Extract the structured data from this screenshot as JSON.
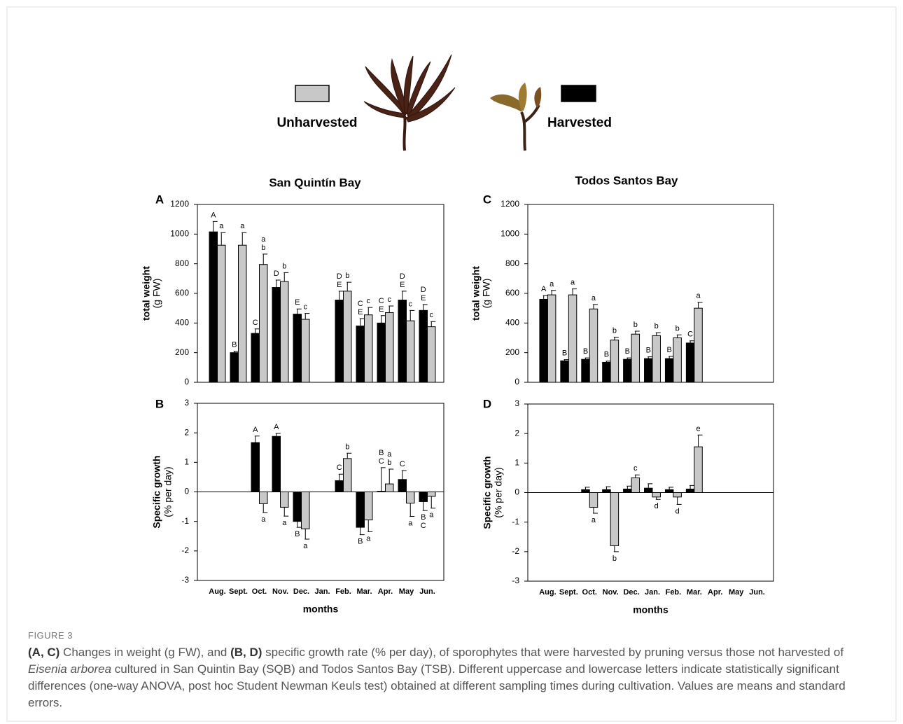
{
  "legend": [
    {
      "name": "Unharvested",
      "color": "#c8c8c8"
    },
    {
      "name": "Harvested",
      "color": "#000000"
    }
  ],
  "chart_data": [
    {
      "type": "bar",
      "panel": "A",
      "title": "San Quintín Bay",
      "ylabel": [
        "total weight",
        "(g FW)"
      ],
      "categories": [
        "Aug.",
        "Sept.",
        "Oct.",
        "Nov.",
        "Dec.",
        "Jan.",
        "Feb.",
        "Mar.",
        "Apr.",
        "May",
        "Jun."
      ],
      "show_x_labels": false,
      "ylim": [
        0,
        1200
      ],
      "yticks": [
        0,
        200,
        400,
        600,
        800,
        1000,
        1200
      ],
      "series": [
        {
          "color": "#000000",
          "values": [
            1015,
            200,
            330,
            640,
            460,
            null,
            555,
            380,
            400,
            555,
            485
          ],
          "errors": [
            70,
            10,
            30,
            50,
            35,
            null,
            60,
            50,
            50,
            60,
            40
          ],
          "letters": [
            "A",
            "B",
            "C",
            "D",
            "E",
            null,
            "DE",
            "CE",
            "CE",
            "DE",
            "DE"
          ]
        },
        {
          "color": "#c8c8c8",
          "values": [
            925,
            925,
            795,
            680,
            425,
            null,
            615,
            455,
            470,
            415,
            375
          ],
          "errors": [
            85,
            85,
            70,
            60,
            40,
            null,
            60,
            50,
            45,
            70,
            35
          ],
          "letters": [
            "a",
            "a",
            "ab",
            "b",
            "c",
            null,
            "b",
            "c",
            "c",
            "c",
            "c"
          ]
        }
      ]
    },
    {
      "type": "bar",
      "panel": "B",
      "ylabel": [
        "Specific growth",
        "(% per day)"
      ],
      "xlabel": "months",
      "categories": [
        "Aug.",
        "Sept.",
        "Oct.",
        "Nov.",
        "Dec.",
        "Jan.",
        "Feb.",
        "Mar.",
        "Apr.",
        "May",
        "Jun."
      ],
      "show_x_labels": true,
      "ylim": [
        -3,
        3
      ],
      "yticks": [
        -3,
        -2,
        -1,
        0,
        1,
        2,
        3
      ],
      "series": [
        {
          "color": "#000000",
          "values": [
            null,
            null,
            1.67,
            1.88,
            -1.0,
            null,
            0.38,
            -1.2,
            0.02,
            0.42,
            -0.33
          ],
          "errors": [
            null,
            null,
            0.22,
            0.1,
            0.2,
            null,
            0.22,
            0.25,
            0.8,
            0.3,
            0.3
          ],
          "letters": [
            null,
            null,
            "A",
            "A",
            "B",
            null,
            "C",
            "B",
            "BC",
            "C",
            "BC"
          ]
        },
        {
          "color": "#c8c8c8",
          "values": [
            null,
            null,
            -0.4,
            -0.52,
            -1.25,
            null,
            1.13,
            -0.95,
            0.27,
            -0.38,
            -0.15
          ],
          "errors": [
            null,
            null,
            0.3,
            0.3,
            0.35,
            null,
            0.18,
            0.4,
            0.5,
            0.45,
            0.4
          ],
          "letters": [
            null,
            null,
            "a",
            "a",
            "a",
            null,
            "b",
            "a",
            "ab",
            "a",
            "a"
          ]
        }
      ]
    },
    {
      "type": "bar",
      "panel": "C",
      "title": "Todos Santos Bay",
      "ylabel": [
        "total weight",
        "(g FW)"
      ],
      "categories": [
        "Aug.",
        "Sept.",
        "Oct.",
        "Nov.",
        "Dec.",
        "Jan.",
        "Feb.",
        "Mar.",
        "Apr.",
        "May",
        "Jun."
      ],
      "show_x_labels": false,
      "ylim": [
        0,
        1200
      ],
      "yticks": [
        0,
        200,
        400,
        600,
        800,
        1000,
        1200
      ],
      "series": [
        {
          "color": "#000000",
          "values": [
            560,
            145,
            155,
            135,
            155,
            160,
            160,
            265,
            null,
            null,
            null
          ],
          "errors": [
            25,
            8,
            10,
            8,
            10,
            12,
            15,
            15,
            null,
            null,
            null
          ],
          "letters": [
            "A",
            "B",
            "B",
            "B",
            "B",
            "B",
            "B",
            "C",
            null,
            null,
            null
          ]
        },
        {
          "color": "#c8c8c8",
          "values": [
            590,
            590,
            495,
            285,
            325,
            315,
            300,
            500,
            null,
            null,
            null
          ],
          "errors": [
            30,
            40,
            30,
            20,
            20,
            20,
            20,
            40,
            null,
            null,
            null
          ],
          "letters": [
            "a",
            "a",
            "a",
            "b",
            "b",
            "b",
            "b",
            "a",
            null,
            null,
            null
          ]
        }
      ]
    },
    {
      "type": "bar",
      "panel": "D",
      "ylabel": [
        "Specific growth",
        "(% per day)"
      ],
      "xlabel": "months",
      "categories": [
        "Aug.",
        "Sept.",
        "Oct.",
        "Nov.",
        "Dec.",
        "Jan.",
        "Feb.",
        "Mar.",
        "Apr.",
        "May",
        "Jun."
      ],
      "show_x_labels": true,
      "ylim": [
        -3,
        3
      ],
      "yticks": [
        -3,
        -2,
        -1,
        0,
        1,
        2,
        3
      ],
      "series": [
        {
          "color": "#000000",
          "values": [
            null,
            null,
            0.1,
            0.1,
            0.12,
            0.15,
            0.1,
            0.12,
            null,
            null,
            null
          ],
          "errors": [
            null,
            null,
            0.08,
            0.1,
            0.1,
            0.15,
            0.08,
            0.12,
            null,
            null,
            null
          ],
          "letters": [
            null,
            null,
            null,
            null,
            null,
            null,
            null,
            null,
            null,
            null,
            null
          ]
        },
        {
          "color": "#c8c8c8",
          "values": [
            null,
            null,
            -0.5,
            -1.8,
            0.5,
            -0.15,
            -0.15,
            1.55,
            null,
            null,
            null
          ],
          "errors": [
            null,
            null,
            0.2,
            0.2,
            0.1,
            0.08,
            0.25,
            0.4,
            null,
            null,
            null
          ],
          "letters": [
            null,
            null,
            "a",
            "b",
            "c",
            "d",
            "d",
            "e",
            null,
            null,
            null
          ]
        }
      ]
    }
  ],
  "caption": {
    "label": "FIGURE 3",
    "parts": [
      {
        "text": "(A, C)",
        "bold": true
      },
      {
        "text": " Changes in weight (g FW), and "
      },
      {
        "text": "(B, D)",
        "bold": true
      },
      {
        "text": " specific growth rate (% per day), of sporophytes that were harvested by pruning versus those not harvested of "
      },
      {
        "text": "Eisenia arborea",
        "italic": true
      },
      {
        "text": " cultured in San Quintin Bay (SQB) and Todos Santos Bay (TSB). Different uppercase and lowercase letters indicate statistically significant differences (one-way ANOVA, post hoc Student Newman Keuls test) obtained at different sampling times during cultivation. Values are means and standard errors."
      }
    ]
  }
}
